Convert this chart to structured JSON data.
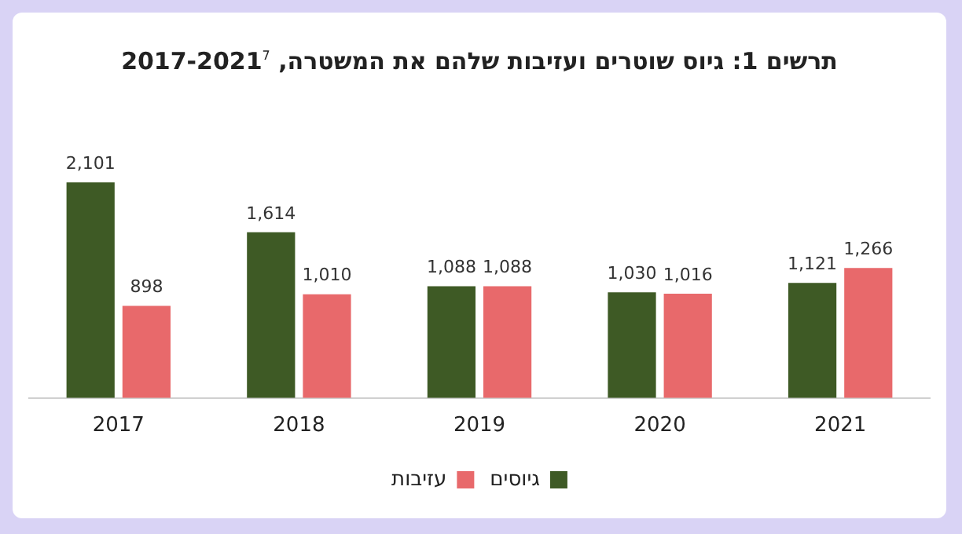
{
  "chart_data": {
    "type": "bar",
    "title": "תרשים 1: גיוס שוטרים ועזיבות שלהם את המשטרה, 2017-2021$^{7}$",
    "categories": [
      "2017",
      "2018",
      "2019",
      "2020",
      "2021"
    ],
    "series": [
      {
        "name": "גיוסים",
        "color": "#3e5a25",
        "values": [
          2101,
          1614,
          1088,
          1030,
          1121
        ],
        "value_labels": [
          "2,101",
          "1,614",
          "1,088",
          "1,030",
          "1,121"
        ]
      },
      {
        "name": "עזיבות",
        "color": "#e8696b",
        "values": [
          898,
          1010,
          1088,
          1016,
          1266
        ],
        "value_labels": [
          "898",
          "1,010",
          "1,088",
          "1,016",
          "1,266"
        ]
      }
    ],
    "legend": "bottom",
    "grid": false,
    "tick_labels": "x"
  }
}
